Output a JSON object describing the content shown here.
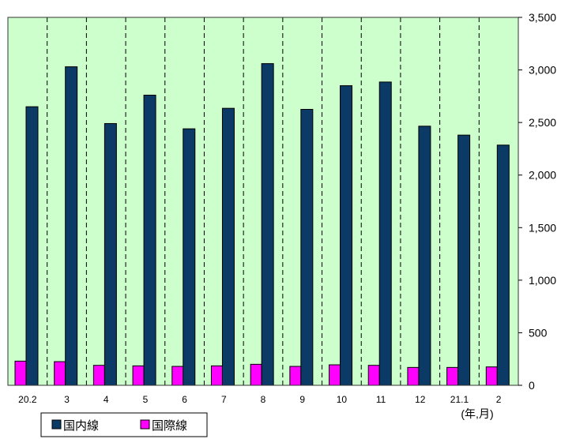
{
  "chart_data": {
    "type": "bar",
    "categories": [
      "20.2",
      "3",
      "4",
      "5",
      "6",
      "7",
      "8",
      "9",
      "10",
      "11",
      "12",
      "21.1",
      "2"
    ],
    "series": [
      {
        "name": "国内線",
        "color": "#0b3a66",
        "values": [
          2650,
          3030,
          2490,
          2760,
          2440,
          2635,
          3060,
          2625,
          2850,
          2885,
          2465,
          2380,
          2285
        ]
      },
      {
        "name": "国際線",
        "color": "#ff00ff",
        "values": [
          230,
          225,
          190,
          185,
          180,
          185,
          200,
          180,
          195,
          190,
          170,
          170,
          175
        ]
      }
    ],
    "xlabel": "(年,月)",
    "ylim": [
      0,
      3500
    ],
    "yticks": [
      "0",
      "500",
      "1,000",
      "1,500",
      "2,000",
      "2,500",
      "3,000",
      "3,500"
    ],
    "ytick_values": [
      0,
      500,
      1000,
      1500,
      2000,
      2500,
      3000,
      3500
    ],
    "plot_background": "#ccffcc",
    "grid": "vertical-dashed",
    "legend_position": "bottom-left"
  }
}
